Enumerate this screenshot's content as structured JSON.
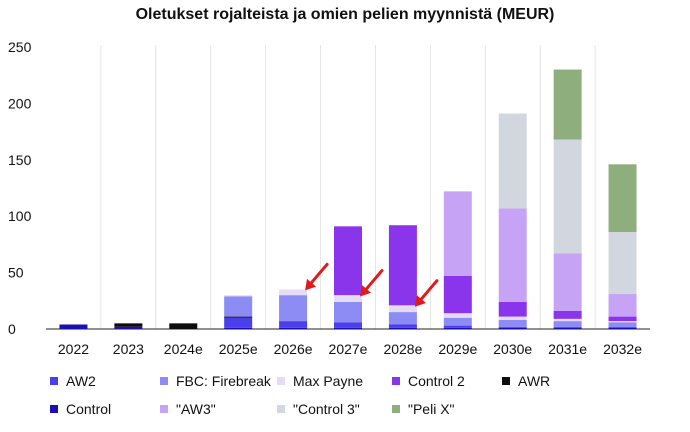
{
  "chart_data": {
    "type": "bar",
    "stacked": true,
    "title": "Oletukset rojalteista ja omien pelien myynnistä (MEUR)",
    "xlabel": "",
    "ylabel": "",
    "ylim": [
      0,
      250
    ],
    "yticks": [
      0,
      50,
      100,
      150,
      200,
      250
    ],
    "grid": "vertical",
    "legend_position": "bottom",
    "categories": [
      "2022",
      "2023",
      "2024e",
      "2025e",
      "2026e",
      "2027e",
      "2028e",
      "2029e",
      "2030e",
      "2031e",
      "2032e"
    ],
    "series": [
      {
        "name": "Control",
        "color": "#1a0fb0",
        "values": [
          4,
          2,
          0,
          1,
          1,
          1,
          1,
          1,
          1,
          1,
          1
        ]
      },
      {
        "name": "AW2",
        "color": "#4a3fe8",
        "values": [
          0,
          0,
          0,
          9,
          6,
          5,
          3,
          2,
          1,
          1,
          1
        ]
      },
      {
        "name": "AWR",
        "color": "#0d0d0d",
        "values": [
          0,
          3,
          5,
          1,
          0,
          0,
          0,
          0,
          0,
          0,
          0
        ]
      },
      {
        "name": "FBC: Firebreak",
        "color": "#8d8cf5",
        "values": [
          0,
          0,
          0,
          18,
          23,
          18,
          11,
          7,
          6,
          5,
          4
        ]
      },
      {
        "name": "Max Payne",
        "color": "#e4dcf5",
        "values": [
          0,
          0,
          0,
          1,
          5,
          6,
          6,
          4,
          3,
          2,
          1
        ]
      },
      {
        "name": "Control 2",
        "color": "#8a35ec",
        "values": [
          0,
          0,
          0,
          0,
          0,
          61,
          71,
          33,
          13,
          7,
          4
        ]
      },
      {
        "name": "\"AW3\"",
        "color": "#c7a3f5",
        "values": [
          0,
          0,
          0,
          0,
          0,
          0,
          0,
          75,
          83,
          51,
          20
        ]
      },
      {
        "name": "\"Control 3\"",
        "color": "#d1d6df",
        "values": [
          0,
          0,
          0,
          0,
          0,
          0,
          0,
          0,
          84,
          101,
          55
        ]
      },
      {
        "name": "\"Peli X\"",
        "color": "#8fae7e",
        "values": [
          0,
          0,
          0,
          0,
          0,
          0,
          0,
          0,
          0,
          62,
          60
        ]
      }
    ],
    "annotations": [
      {
        "type": "arrow",
        "color": "#e01b1b",
        "category": "2026e",
        "points_at_series": "Max Payne"
      },
      {
        "type": "arrow",
        "color": "#e01b1b",
        "category": "2027e",
        "points_at_series": "Max Payne"
      },
      {
        "type": "arrow",
        "color": "#e01b1b",
        "category": "2028e",
        "points_at_series": "Max Payne"
      }
    ]
  },
  "legend": {
    "row1": [
      {
        "label": "AW2",
        "color": "#4a3fe8"
      },
      {
        "label": "FBC: Firebreak",
        "color": "#8d8cf5"
      },
      {
        "label": "Max Payne",
        "color": "#e4dcf5"
      },
      {
        "label": "Control 2",
        "color": "#8a35ec"
      },
      {
        "label": "AWR",
        "color": "#0d0d0d"
      }
    ],
    "row2": [
      {
        "label": "Control",
        "color": "#1a0fb0"
      },
      {
        "label": "\"AW3\"",
        "color": "#c7a3f5"
      },
      {
        "label": "\"Control 3\"",
        "color": "#d1d6df"
      },
      {
        "label": "\"Peli X\"",
        "color": "#8fae7e"
      }
    ]
  }
}
